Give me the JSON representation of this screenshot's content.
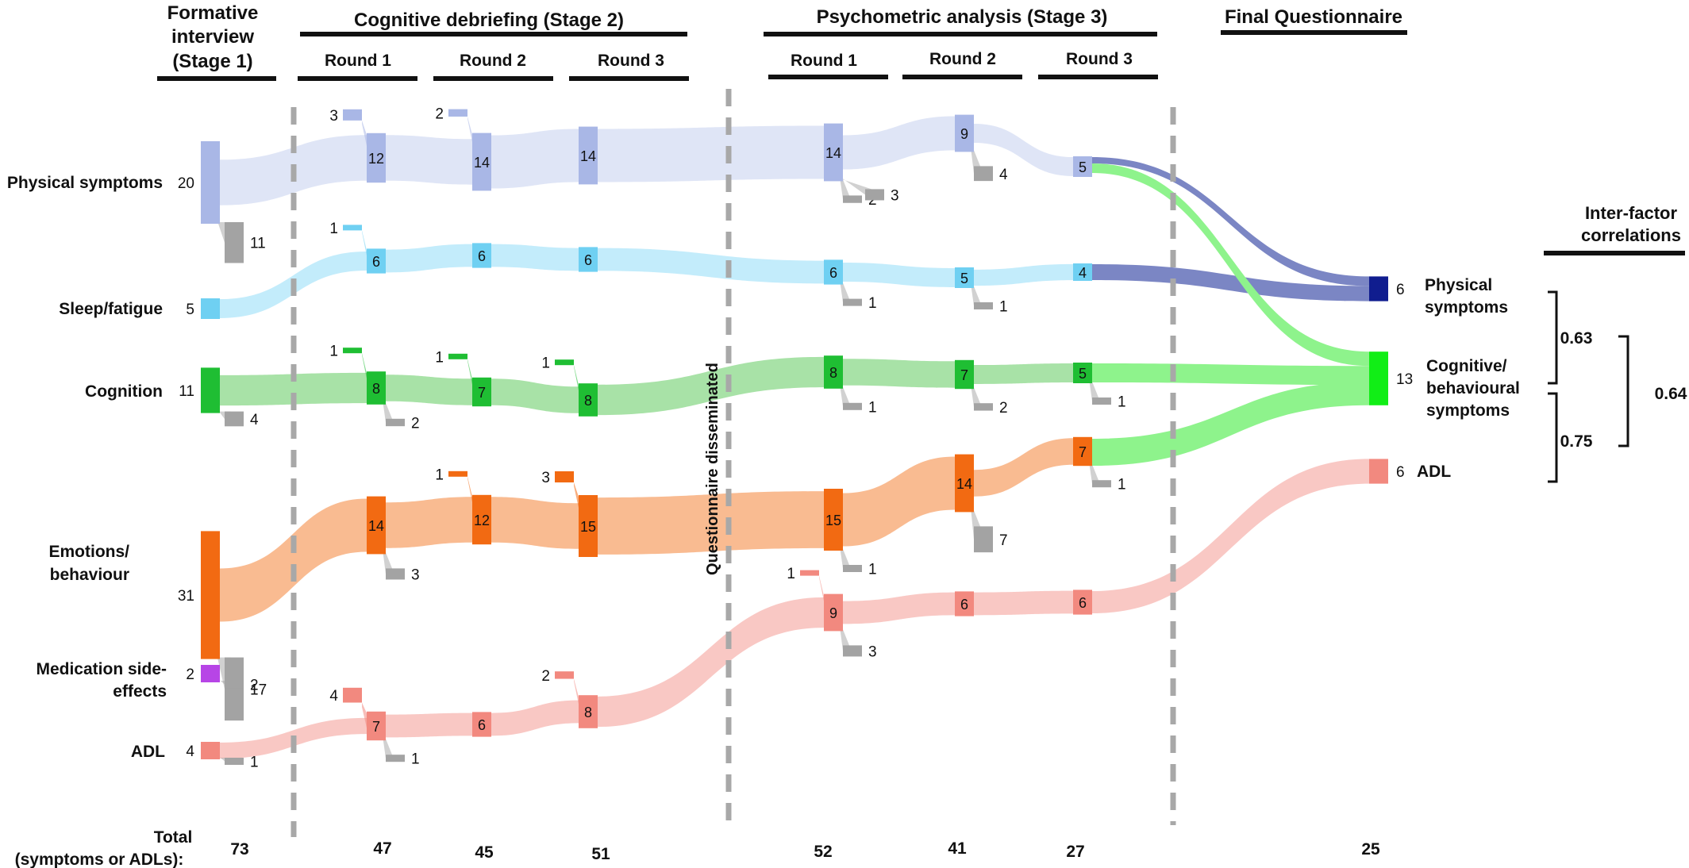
{
  "headers": {
    "stage1": [
      "Formative",
      "interview",
      "(Stage 1)"
    ],
    "stage2": "Cognitive debriefing (Stage 2)",
    "stage3": "Psychometric analysis (Stage 3)",
    "final": "Final Questionnaire",
    "round1": "Round 1",
    "round2": "Round 2",
    "round3": "Round 3"
  },
  "stage_divider_label": "Questionnaire disseminated",
  "row_labels": {
    "physical": "Physical symptoms",
    "sleep": "Sleep/fatigue",
    "cognition": "Cognition",
    "emotions": [
      "Emotions/",
      "behaviour"
    ],
    "medication": [
      "Medication side-",
      "effects"
    ],
    "adl": "ADL"
  },
  "final_labels": {
    "physical": [
      "Physical",
      "symptoms"
    ],
    "cognitive": [
      "Cognitive/",
      "behavioural",
      "symptoms"
    ],
    "adl": "ADL"
  },
  "correlations": {
    "title": [
      "Inter-factor",
      "correlations"
    ],
    "phys_cog": "0.63",
    "cog_adl": "0.75",
    "phys_adl": "0.64"
  },
  "total_label": [
    "Total",
    "(symptoms or ADLs):"
  ],
  "totals": [
    "73",
    "47",
    "45",
    "51",
    "52",
    "41",
    "27",
    "25"
  ],
  "colors": {
    "physical": "#a9b7e6",
    "physical_flow": "#dfe5f6",
    "sleep": "#6fd0f2",
    "sleep_flow": "#c3ecfb",
    "cognition": "#1fbe33",
    "cognition_flow": "#a8e2a7",
    "emotions": "#f26a12",
    "emotions_flow": "#f9bb91",
    "medication": "#b745e6",
    "adl": "#f2897f",
    "adl_flow": "#f9c8c4",
    "removed": "#a3a3a3",
    "final_physical": "#101d8f",
    "final_physical_flow": "#7b86c4",
    "final_cognitive": "#11ee16",
    "final_cognitive_flow": "#8ef38c",
    "final_adl": "#f2897f",
    "divider": "#a8a8a8"
  },
  "chart_data": {
    "type": "sankey",
    "stages": [
      "Stage 1",
      "Round 1",
      "Round 2",
      "Round 3",
      "Round 1",
      "Round 2",
      "Round 3",
      "Final Questionnaire"
    ],
    "series": [
      {
        "name": "Physical symptoms",
        "kept": [
          20,
          12,
          14,
          14,
          14,
          9,
          5
        ],
        "added": [
          null,
          3,
          2,
          null,
          null,
          null,
          null
        ],
        "removed": [
          11,
          null,
          null,
          null,
          [
            2,
            3
          ],
          4,
          null
        ]
      },
      {
        "name": "Sleep/fatigue",
        "kept": [
          5,
          6,
          6,
          6,
          6,
          5,
          4
        ],
        "added": [
          null,
          1,
          null,
          null,
          null,
          null,
          null
        ],
        "removed": [
          null,
          null,
          null,
          null,
          1,
          1,
          null
        ]
      },
      {
        "name": "Cognition",
        "kept": [
          11,
          8,
          7,
          8,
          8,
          7,
          5
        ],
        "added": [
          null,
          1,
          1,
          1,
          null,
          null,
          null
        ],
        "removed": [
          4,
          2,
          null,
          null,
          1,
          2,
          1
        ]
      },
      {
        "name": "Emotions/behaviour",
        "kept": [
          31,
          14,
          12,
          15,
          15,
          14,
          7
        ],
        "added": [
          null,
          null,
          1,
          3,
          null,
          null,
          null
        ],
        "removed": [
          17,
          3,
          null,
          null,
          1,
          7,
          1
        ]
      },
      {
        "name": "Medication side-effects",
        "kept": [
          2
        ],
        "removed": [
          2
        ]
      },
      {
        "name": "ADL",
        "kept": [
          4,
          7,
          6,
          8,
          9,
          6,
          6
        ],
        "added": [
          null,
          4,
          null,
          2,
          1,
          null,
          null
        ],
        "removed": [
          1,
          1,
          null,
          null,
          3,
          null,
          null
        ]
      }
    ],
    "final": [
      {
        "name": "Physical symptoms",
        "value": 6
      },
      {
        "name": "Cognitive/behavioural symptoms",
        "value": 13
      },
      {
        "name": "ADL",
        "value": 6
      }
    ],
    "totals": [
      73,
      47,
      45,
      51,
      52,
      41,
      27,
      25
    ],
    "correlations": [
      {
        "pair": [
          "Physical symptoms",
          "Cognitive/behavioural symptoms"
        ],
        "value": 0.63
      },
      {
        "pair": [
          "Cognitive/behavioural symptoms",
          "ADL"
        ],
        "value": 0.75
      },
      {
        "pair": [
          "Physical symptoms",
          "ADL"
        ],
        "value": 0.64
      }
    ]
  }
}
